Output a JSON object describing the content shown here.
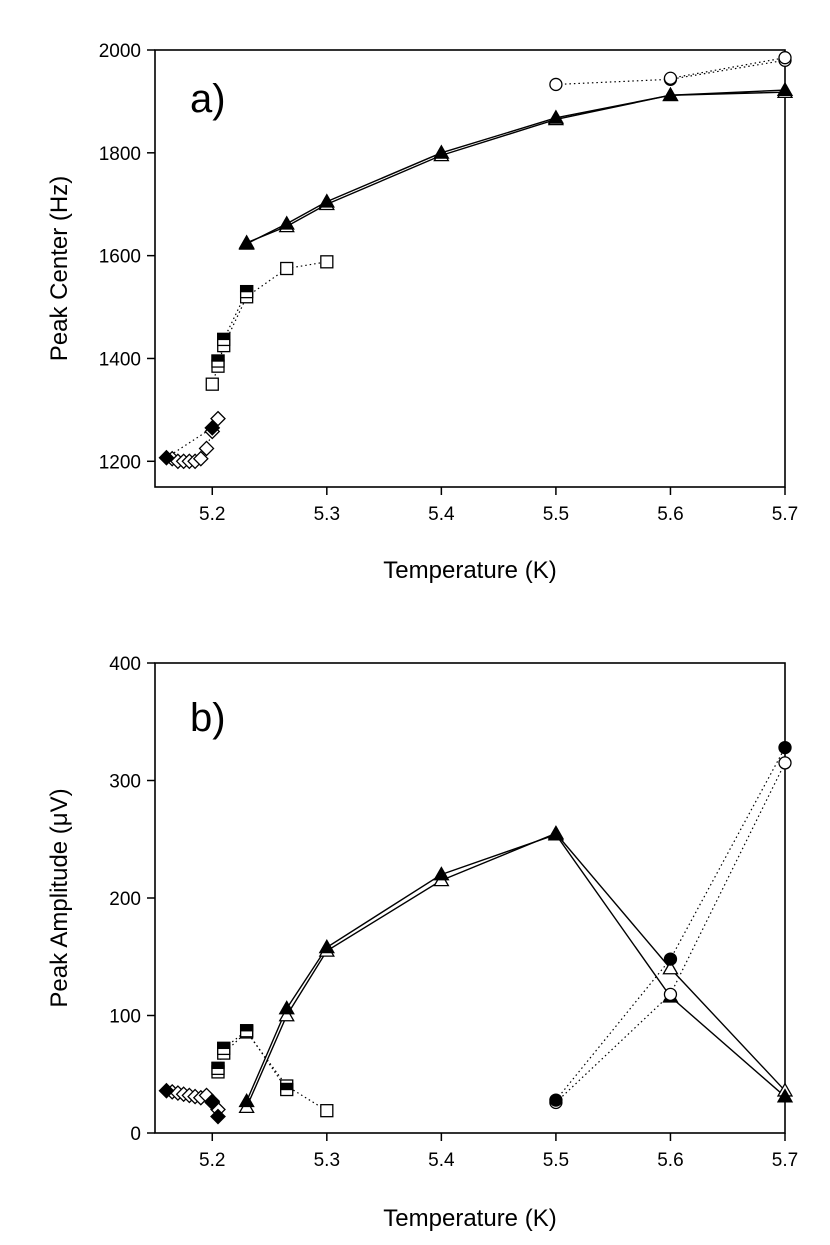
{
  "chart_data": [
    {
      "type": "scatter",
      "panel_label": "a)",
      "title": "",
      "xlabel": "Temperature (K)",
      "ylabel": "Peak Center (Hz)",
      "xlim": [
        5.15,
        5.7
      ],
      "ylim": [
        1150,
        2000
      ],
      "xticks": [
        5.2,
        5.3,
        5.4,
        5.5,
        5.6,
        5.7
      ],
      "xtick_labels": [
        "5.2",
        "5.3",
        "5.4",
        "5.5",
        "5.6",
        "5.7"
      ],
      "yticks": [
        1200,
        1400,
        1600,
        1800,
        2000
      ],
      "ytick_labels": [
        "1200",
        "1400",
        "1600",
        "1800",
        "2000"
      ],
      "series": [
        {
          "name": "diamond open",
          "marker": "diamond",
          "fill": "open",
          "line": "dotted",
          "x": [
            5.165,
            5.17,
            5.175,
            5.18,
            5.185,
            5.19,
            5.195,
            5.2,
            5.205
          ],
          "y": [
            1205,
            1200,
            1200,
            1200,
            1200,
            1205,
            1225,
            1258,
            1283
          ]
        },
        {
          "name": "diamond filled",
          "marker": "diamond",
          "fill": "filled",
          "line": "dotted",
          "x": [
            5.16,
            5.2
          ],
          "y": [
            1207,
            1265
          ]
        },
        {
          "name": "square open",
          "marker": "square",
          "fill": "open",
          "line": "dotted",
          "x": [
            5.2,
            5.205,
            5.21,
            5.23,
            5.265,
            5.3
          ],
          "y": [
            1350,
            1385,
            1425,
            1520,
            1575,
            1588
          ]
        },
        {
          "name": "square filled",
          "marker": "square",
          "fill": "half",
          "line": "dotted",
          "x": [
            5.205,
            5.21,
            5.23
          ],
          "y": [
            1395,
            1437,
            1530
          ]
        },
        {
          "name": "triangle open",
          "marker": "triangle",
          "fill": "open",
          "line": "solid",
          "x": [
            5.23,
            5.265,
            5.3,
            5.4,
            5.5,
            5.6,
            5.7
          ],
          "y": [
            1625,
            1657,
            1700,
            1795,
            1865,
            1912,
            1918
          ]
        },
        {
          "name": "triangle filled",
          "marker": "triangle",
          "fill": "filled",
          "line": "solid",
          "x": [
            5.23,
            5.265,
            5.3,
            5.4,
            5.5,
            5.6,
            5.7
          ],
          "y": [
            1623,
            1662,
            1705,
            1800,
            1868,
            1912,
            1922
          ]
        },
        {
          "name": "circle open",
          "marker": "circle",
          "fill": "open",
          "line": "dotted",
          "x": [
            5.5,
            5.6,
            5.7
          ],
          "y": [
            1933,
            1943,
            1980
          ]
        },
        {
          "name": "circle filled",
          "marker": "circle",
          "fill": "open",
          "line": "dotted",
          "x": [
            5.6,
            5.7
          ],
          "y": [
            1945,
            1985
          ]
        }
      ]
    },
    {
      "type": "scatter",
      "panel_label": "b)",
      "title": "",
      "xlabel": "Temperature (K)",
      "ylabel": "Peak Amplitude (μV)",
      "xlim": [
        5.15,
        5.7
      ],
      "ylim": [
        0,
        400
      ],
      "xticks": [
        5.2,
        5.3,
        5.4,
        5.5,
        5.6,
        5.7
      ],
      "xtick_labels": [
        "5.2",
        "5.3",
        "5.4",
        "5.5",
        "5.6",
        "5.7"
      ],
      "yticks": [
        0,
        100,
        200,
        300,
        400
      ],
      "ytick_labels": [
        "0",
        "100",
        "200",
        "300",
        "400"
      ],
      "series": [
        {
          "name": "diamond open",
          "marker": "diamond",
          "fill": "open",
          "line": "dotted",
          "x": [
            5.165,
            5.17,
            5.175,
            5.18,
            5.185,
            5.19,
            5.195,
            5.2,
            5.205
          ],
          "y": [
            35,
            34,
            33,
            32,
            31,
            30,
            32,
            27,
            20
          ]
        },
        {
          "name": "diamond filled",
          "marker": "diamond",
          "fill": "filled",
          "line": "dotted",
          "x": [
            5.16,
            5.2,
            5.205
          ],
          "y": [
            36,
            26,
            14
          ]
        },
        {
          "name": "square open",
          "marker": "square",
          "fill": "open",
          "line": "dotted",
          "x": [
            5.205,
            5.21,
            5.23,
            5.265,
            5.3
          ],
          "y": [
            52,
            68,
            86,
            40,
            19
          ]
        },
        {
          "name": "square filled",
          "marker": "square",
          "fill": "half",
          "line": "dotted",
          "x": [
            5.205,
            5.21,
            5.23,
            5.265
          ],
          "y": [
            55,
            72,
            87,
            37
          ]
        },
        {
          "name": "triangle open",
          "marker": "triangle",
          "fill": "open",
          "line": "solid",
          "x": [
            5.23,
            5.265,
            5.3,
            5.4,
            5.5,
            5.6,
            5.7
          ],
          "y": [
            22,
            100,
            155,
            215,
            255,
            140,
            36
          ]
        },
        {
          "name": "triangle filled",
          "marker": "triangle",
          "fill": "filled",
          "line": "solid",
          "x": [
            5.23,
            5.265,
            5.3,
            5.4,
            5.5,
            5.6,
            5.7
          ],
          "y": [
            27,
            106,
            158,
            220,
            254,
            116,
            31
          ]
        },
        {
          "name": "circle open",
          "marker": "circle",
          "fill": "open",
          "line": "dotted",
          "x": [
            5.5,
            5.6,
            5.7
          ],
          "y": [
            26,
            118,
            315
          ]
        },
        {
          "name": "circle filled",
          "marker": "circle",
          "fill": "filled",
          "line": "dotted",
          "x": [
            5.5,
            5.6,
            5.7
          ],
          "y": [
            28,
            148,
            328
          ]
        }
      ]
    }
  ]
}
